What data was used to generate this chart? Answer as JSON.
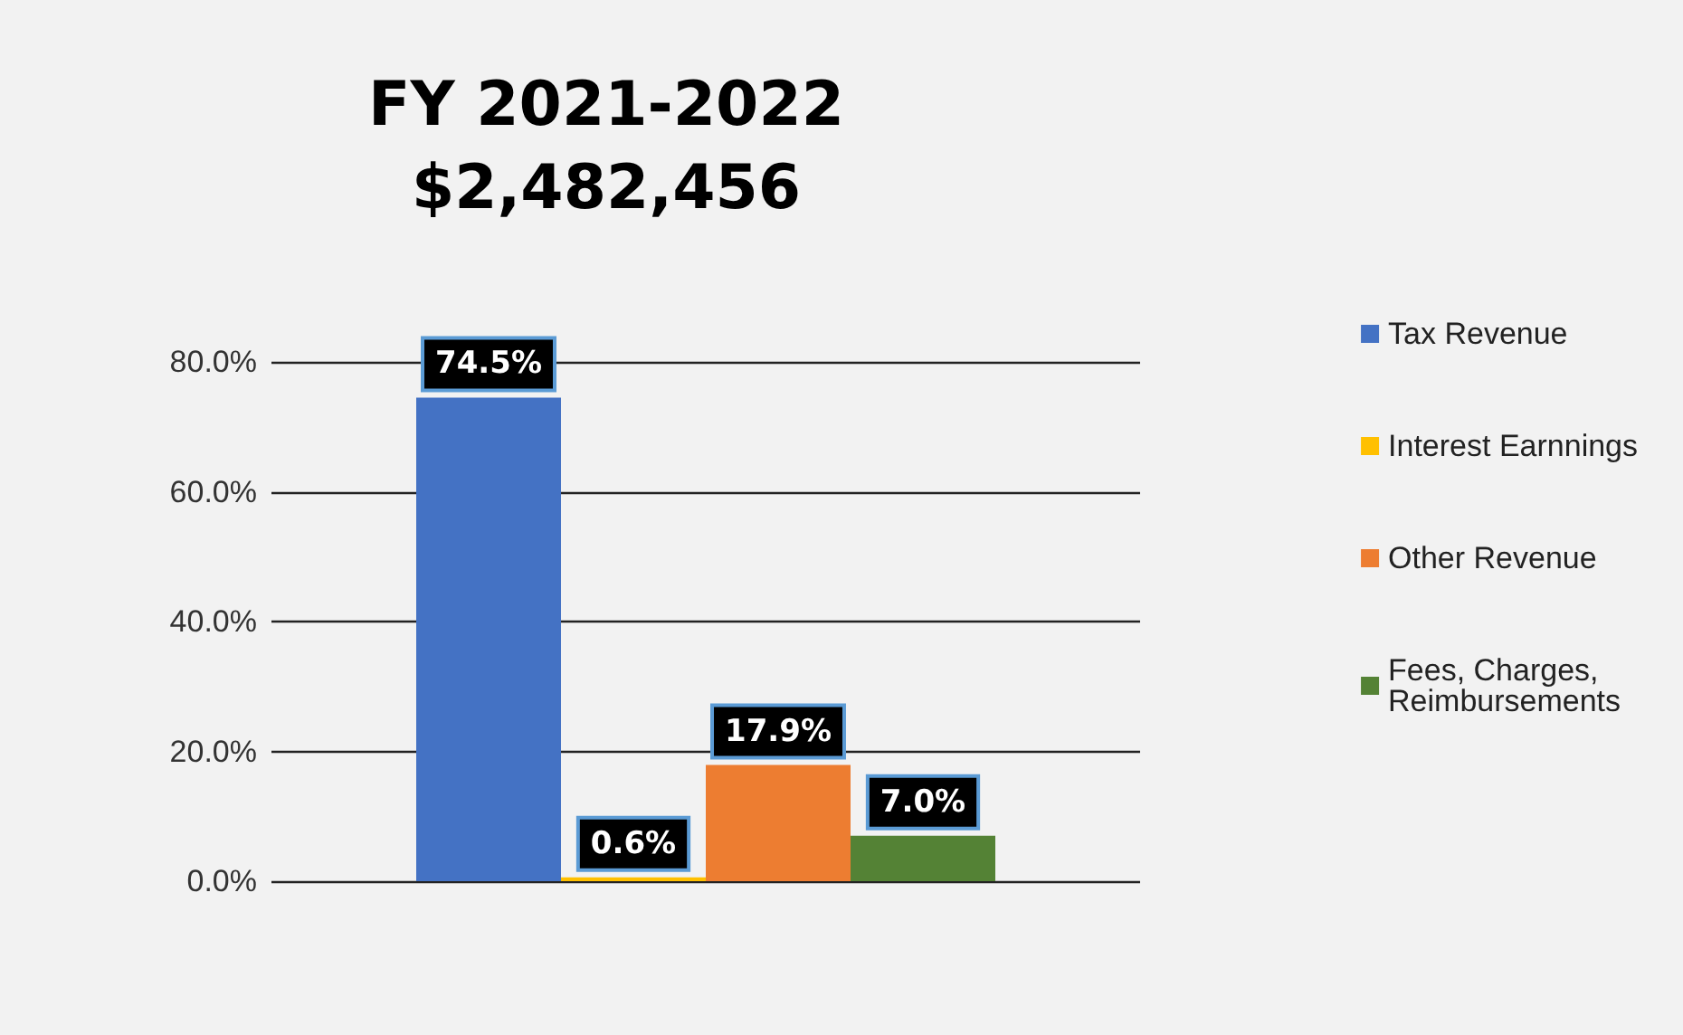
{
  "chart_data": {
    "type": "bar",
    "title": "FY 2021-2022\n$2,482,456",
    "categories": [
      null
    ],
    "series": [
      {
        "name": "Tax Revenue",
        "color": "#4472c4",
        "values": [
          74.5
        ],
        "value_labels": [
          "74.5%"
        ]
      },
      {
        "name": "Interest Earnnings",
        "color": "#ffc000",
        "values": [
          0.6
        ],
        "value_labels": [
          "0.6%"
        ]
      },
      {
        "name": "Other Revenue",
        "color": "#ed7d31",
        "values": [
          17.9
        ],
        "value_labels": [
          "17.9%"
        ]
      },
      {
        "name": "Fees, Charges,\nReimbursements",
        "color": "#548235",
        "values": [
          7.0
        ],
        "value_labels": [
          "7.0%"
        ]
      }
    ],
    "ylim": [
      0,
      80
    ],
    "yticks": [
      {
        "value": 0,
        "label": "0.0%"
      },
      {
        "value": 20,
        "label": "20.0%"
      },
      {
        "value": 40,
        "label": "40.0%"
      },
      {
        "value": 60,
        "label": "60.0%"
      },
      {
        "value": 80,
        "label": "80.0%"
      }
    ],
    "grid": true,
    "legend": "right"
  }
}
